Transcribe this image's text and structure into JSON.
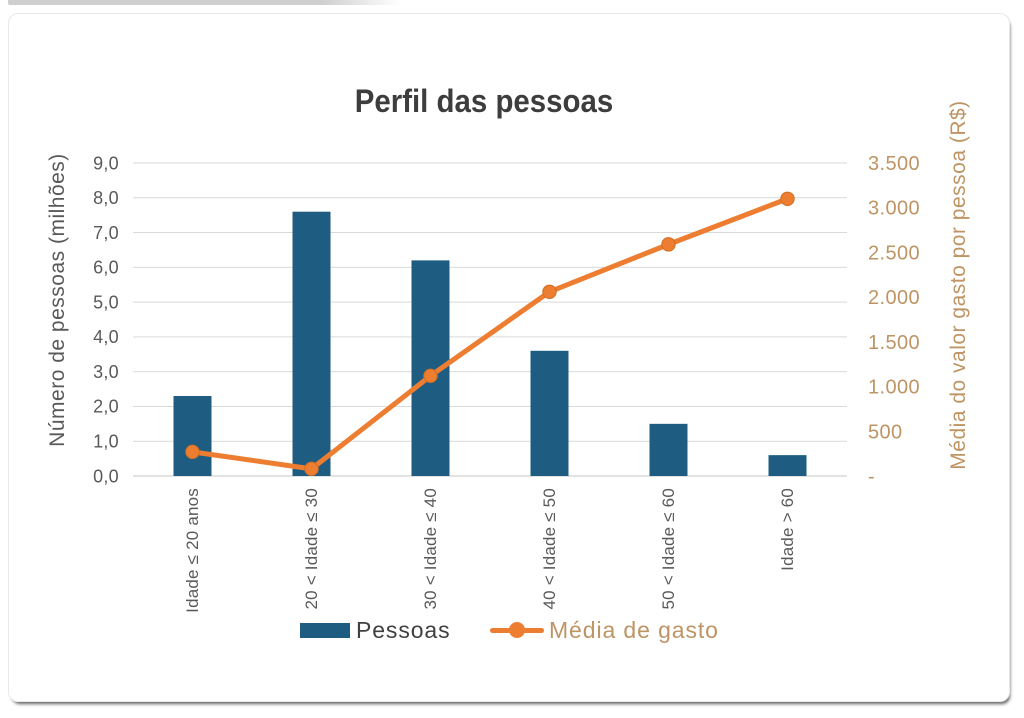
{
  "page": {
    "background": "#ffffff"
  },
  "decorations": {
    "top_strip_color": "#cfcfcf",
    "card_border_color": "#e8e8e8"
  },
  "chart_data": {
    "type": "combo-bar-line",
    "title": "Perfil das pessoas",
    "title_color": "#3d3d3d",
    "gridline_color": "#d9d9d9",
    "axis_line_color": "#c6c6c6",
    "categories": [
      "Idade ≤ 20 anos",
      "20 < Idade ≤ 30",
      "30 < Idade ≤ 40",
      "40 < Idade ≤ 50",
      "50 < Idade ≤ 60",
      "Idade > 60"
    ],
    "series": [
      {
        "name": "Pessoas",
        "type": "bar",
        "axis": "left",
        "color": "#1f5c81",
        "values": [
          2.3,
          7.6,
          6.2,
          3.6,
          1.5,
          0.6
        ]
      },
      {
        "name": "Média de gasto",
        "type": "line",
        "axis": "right",
        "color": "#ed7d31",
        "marker_edge_color": "#d06f22",
        "values": [
          270,
          80,
          1120,
          2060,
          2590,
          3100
        ]
      }
    ],
    "left_axis": {
      "title": "Número de pessoas (milhões)",
      "min": 0,
      "max": 9,
      "tick_step": 1,
      "tick_labels": [
        "0,0",
        "1,0",
        "2,0",
        "3,0",
        "4,0",
        "5,0",
        "6,0",
        "7,0",
        "8,0",
        "9,0"
      ],
      "color": "#595959"
    },
    "right_axis": {
      "title": "Média do valor gasto por pessoa (R$)",
      "min": 0,
      "max": 3500,
      "tick_step": 500,
      "tick_labels": [
        "-",
        "500",
        "1.000",
        "1.500",
        "2.000",
        "2.500",
        "3.000",
        "3.500"
      ],
      "color": "#be9464"
    },
    "legend": {
      "position": "bottom",
      "items": [
        {
          "label": "Pessoas",
          "color": "#404040",
          "swatch": "bar"
        },
        {
          "label": "Média de gasto",
          "color": "#be9464",
          "swatch": "line-marker"
        }
      ]
    },
    "grid": true
  }
}
